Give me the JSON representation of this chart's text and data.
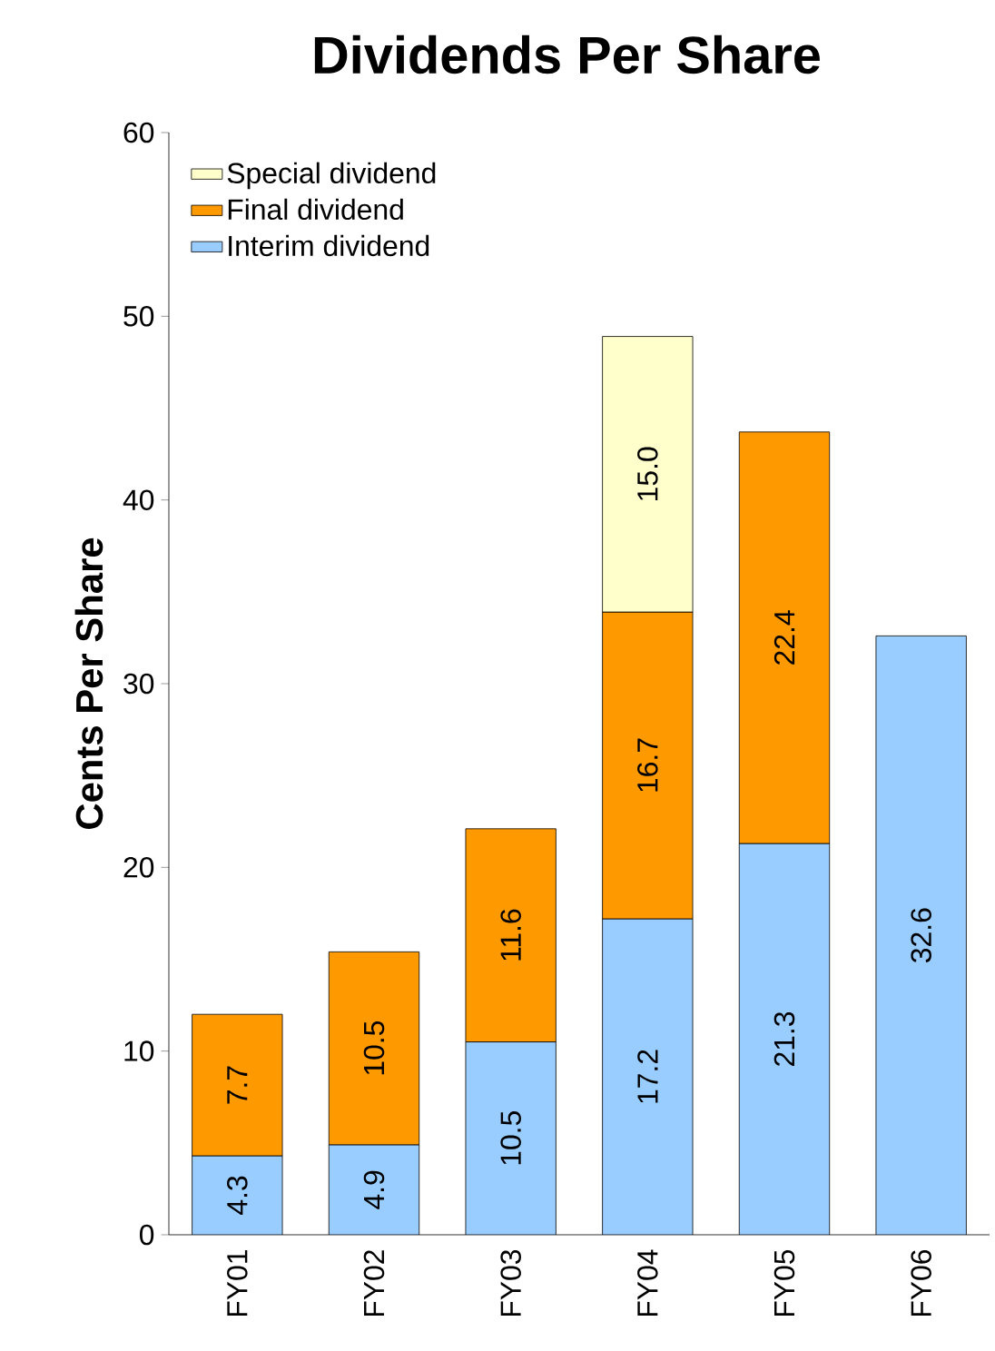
{
  "chart_data": {
    "type": "bar",
    "title": "Dividends Per Share",
    "ylabel": "Cents Per Share",
    "categories": [
      "FY01",
      "FY02",
      "FY03",
      "FY04",
      "FY05",
      "FY06"
    ],
    "stacked": true,
    "series": [
      {
        "name": "Interim dividend",
        "color": "#99ccff",
        "values": [
          4.3,
          4.9,
          10.5,
          17.2,
          21.3,
          32.6
        ],
        "value_labels": [
          "4.3",
          "4.9",
          "10.5",
          "17.2",
          "21.3",
          "32.6"
        ]
      },
      {
        "name": "Final dividend",
        "color": "#ff9900",
        "values": [
          7.7,
          10.5,
          11.6,
          16.7,
          22.4,
          null
        ],
        "value_labels": [
          "7.7",
          "10.5",
          "11.6",
          "16.7",
          "22.4",
          null
        ]
      },
      {
        "name": "Special dividend",
        "color": "#ffffcc",
        "values": [
          null,
          null,
          null,
          15.0,
          null,
          null
        ],
        "value_labels": [
          null,
          null,
          null,
          "15.0",
          null,
          null
        ]
      }
    ],
    "ylim": [
      0,
      60
    ],
    "yticks": [
      0,
      10,
      20,
      30,
      40,
      50,
      60
    ],
    "legend": "top left",
    "grid": false
  }
}
